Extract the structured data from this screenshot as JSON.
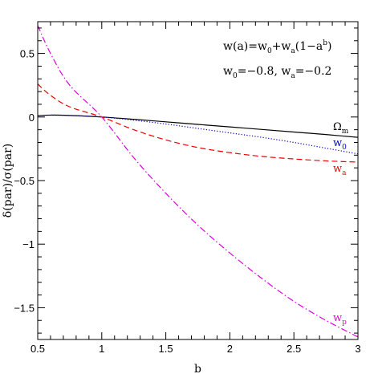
{
  "chart_data": {
    "type": "line",
    "xlabel": "b",
    "ylabel": "δ(par)/σ(par)",
    "xlim": [
      0.5,
      3.0
    ],
    "ylim": [
      -1.75,
      0.75
    ],
    "xticks": [
      0.5,
      1,
      1.5,
      2,
      2.5,
      3
    ],
    "xtick_labels": [
      "0.5",
      "1",
      "1.5",
      "2",
      "2.5",
      "3"
    ],
    "yticks": [
      -1.5,
      -1,
      -0.5,
      0,
      0.5
    ],
    "ytick_labels": [
      "−1.5",
      "−1",
      "−0.5",
      "0",
      "0.5"
    ],
    "grid": false,
    "annotations": {
      "model": "w(a)=w",
      "model_sub0": "0",
      "model_plus": "+w",
      "model_suba": "a",
      "model_tail": "(1−a",
      "model_sup": "b",
      "model_close": ")",
      "params_w": "w",
      "params_sub0": "0",
      "params_eq1": "=−0.8,  w",
      "params_suba": "a",
      "params_eq2": "=−0.2"
    },
    "series": [
      {
        "name": "Ω",
        "name_sub": "m",
        "color": "#000000",
        "dash": "solid",
        "x": [
          0.5,
          0.6,
          0.75,
          1.0,
          1.25,
          1.5,
          1.75,
          2.0,
          2.25,
          2.5,
          2.75,
          3.0
        ],
        "y": [
          0.01,
          0.015,
          0.012,
          0.0,
          -0.018,
          -0.038,
          -0.058,
          -0.078,
          -0.098,
          -0.118,
          -0.138,
          -0.16
        ]
      },
      {
        "name": "w",
        "name_sub": "0",
        "color": "#0000cc",
        "dash": "dotted",
        "x": [
          0.5,
          0.6,
          0.75,
          1.0,
          1.25,
          1.5,
          1.75,
          2.0,
          2.25,
          2.5,
          2.75,
          3.0
        ],
        "y": [
          0.01,
          0.015,
          0.012,
          0.0,
          -0.025,
          -0.055,
          -0.09,
          -0.125,
          -0.16,
          -0.2,
          -0.245,
          -0.29
        ]
      },
      {
        "name": "w",
        "name_sub": "a",
        "color": "#ee0000",
        "dash": "dashed",
        "x": [
          0.5,
          0.6,
          0.75,
          1.0,
          1.25,
          1.5,
          1.75,
          2.0,
          2.25,
          2.5,
          2.75,
          3.0
        ],
        "y": [
          0.26,
          0.17,
          0.08,
          0.0,
          -0.1,
          -0.18,
          -0.24,
          -0.28,
          -0.31,
          -0.33,
          -0.345,
          -0.355
        ]
      },
      {
        "name": "w",
        "name_sub": "p",
        "color": "#dd00dd",
        "dash": "dashdot",
        "x": [
          0.5,
          0.6,
          0.75,
          1.0,
          1.25,
          1.5,
          1.75,
          2.0,
          2.25,
          2.5,
          2.75,
          3.0
        ],
        "y": [
          0.72,
          0.5,
          0.25,
          0.0,
          -0.32,
          -0.6,
          -0.85,
          -1.07,
          -1.27,
          -1.45,
          -1.6,
          -1.73
        ]
      }
    ]
  }
}
